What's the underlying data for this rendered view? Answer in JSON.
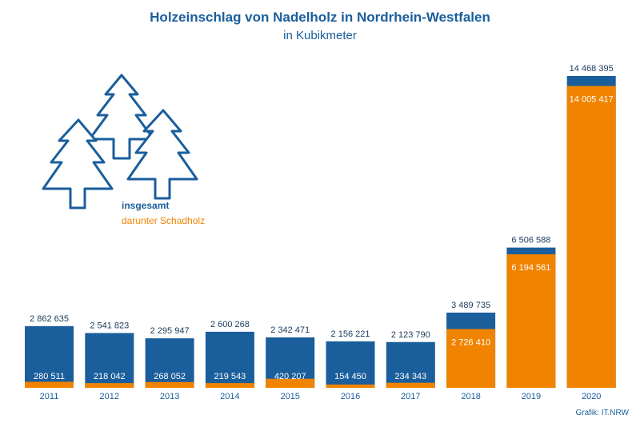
{
  "colors": {
    "total": "#1a5e9c",
    "damage": "#f08400",
    "text_dark": "#1a3a5c"
  },
  "chart_data": {
    "type": "bar",
    "title": "Holzeinschlag von Nadelholz in Nordrhein-Westfalen",
    "subtitle": "in Kubikmeter",
    "categories": [
      "2011",
      "2012",
      "2013",
      "2014",
      "2015",
      "2016",
      "2017",
      "2018",
      "2019",
      "2020"
    ],
    "series": [
      {
        "name": "insgesamt",
        "values": [
          2862635,
          2541823,
          2295947,
          2600268,
          2342471,
          2156221,
          2123790,
          3489735,
          6506588,
          14468395
        ],
        "labels": [
          "2 862 635",
          "2 541 823",
          "2 295 947",
          "2 600 268",
          "2 342 471",
          "2 156 221",
          "2 123 790",
          "3 489 735",
          "6 506 588",
          "14 468 395"
        ]
      },
      {
        "name": "darunter Schadholz",
        "values": [
          280511,
          218042,
          268052,
          219543,
          420207,
          154450,
          234343,
          2726410,
          6194561,
          14005417
        ],
        "labels": [
          "280 511",
          "218 042",
          "268 052",
          "219 543",
          "420 207",
          "154 450",
          "234 343",
          "2 726 410",
          "6 194 561",
          "14 005 417"
        ]
      }
    ],
    "legend": {
      "total": "insgesamt",
      "damage": "darunter Schadholz",
      "position": "upper-left"
    },
    "source": "Grafik: IT.NRW"
  }
}
